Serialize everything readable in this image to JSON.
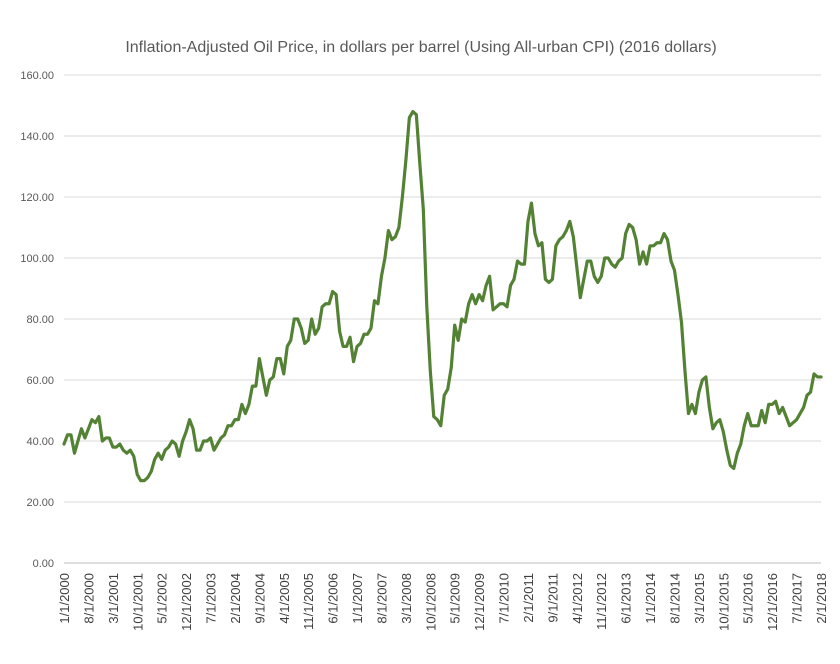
{
  "chart_data": {
    "type": "line",
    "title": "Inflation-Adjusted Oil Price, in dollars per barrel (Using All-urban CPI) (2016 dollars)",
    "xlabel": "",
    "ylabel": "",
    "ylim": [
      0,
      160
    ],
    "y_ticks": [
      "0.00",
      "20.00",
      "40.00",
      "60.00",
      "80.00",
      "100.00",
      "120.00",
      "140.00",
      "160.00"
    ],
    "x_tick_labels": [
      "1/1/2000",
      "8/1/2000",
      "3/1/2001",
      "10/1/2001",
      "5/1/2002",
      "12/1/2002",
      "7/1/2003",
      "2/1/2004",
      "9/1/2004",
      "4/1/2005",
      "11/1/2005",
      "6/1/2006",
      "1/1/2007",
      "8/1/2007",
      "3/1/2008",
      "10/1/2008",
      "5/1/2009",
      "12/1/2009",
      "7/1/2010",
      "2/1/2011",
      "9/1/2011",
      "4/1/2012",
      "11/1/2012",
      "6/1/2013",
      "1/1/2014",
      "8/1/2014",
      "3/1/2015",
      "10/1/2015",
      "5/1/2016",
      "12/1/2016",
      "7/1/2017",
      "2/1/2018"
    ],
    "grid": true,
    "legend": "none",
    "series": [
      {
        "name": "Inflation-Adjusted Oil Price",
        "color": "#548235",
        "x_start": "1/1/2000",
        "frequency": "monthly",
        "values": [
          39,
          42,
          42,
          36,
          40,
          44,
          41,
          44,
          47,
          46,
          48,
          40,
          41,
          41,
          38,
          38,
          39,
          37,
          36,
          37,
          35,
          29,
          27,
          27,
          28,
          30,
          34,
          36,
          34,
          37,
          38,
          40,
          39,
          35,
          40,
          43,
          47,
          44,
          37,
          37,
          40,
          40,
          41,
          37,
          39,
          41,
          42,
          45,
          45,
          47,
          47,
          52,
          49,
          52,
          58,
          58,
          67,
          61,
          55,
          60,
          61,
          67,
          67,
          62,
          71,
          73,
          80,
          80,
          77,
          72,
          73,
          80,
          75,
          77,
          84,
          85,
          85,
          89,
          88,
          76,
          71,
          71,
          74,
          66,
          71,
          72,
          75,
          75,
          77,
          86,
          85,
          94,
          100,
          109,
          106,
          107,
          110,
          120,
          132,
          146,
          148,
          147,
          131,
          116,
          84,
          63,
          48,
          47,
          45,
          55,
          57,
          64,
          78,
          73,
          80,
          79,
          85,
          88,
          85,
          88,
          86,
          91,
          94,
          83,
          84,
          85,
          85,
          84,
          91,
          93,
          99,
          98,
          98,
          112,
          118,
          108,
          104,
          105,
          93,
          92,
          93,
          104,
          106,
          107,
          109,
          112,
          107,
          97,
          87,
          93,
          99,
          99,
          94,
          92,
          94,
          100,
          100,
          98,
          97,
          99,
          100,
          108,
          111,
          110,
          106,
          98,
          102,
          98,
          104,
          104,
          105,
          105,
          108,
          106,
          99,
          96,
          88,
          79,
          63,
          49,
          52,
          49,
          56,
          60,
          61,
          51,
          44,
          46,
          47,
          43,
          37,
          32,
          31,
          36,
          39,
          45,
          49,
          45,
          45,
          45,
          50,
          46,
          52,
          52,
          53,
          49,
          51,
          48,
          45,
          46,
          47,
          49,
          51,
          55,
          56,
          62,
          61,
          61
        ]
      }
    ]
  }
}
